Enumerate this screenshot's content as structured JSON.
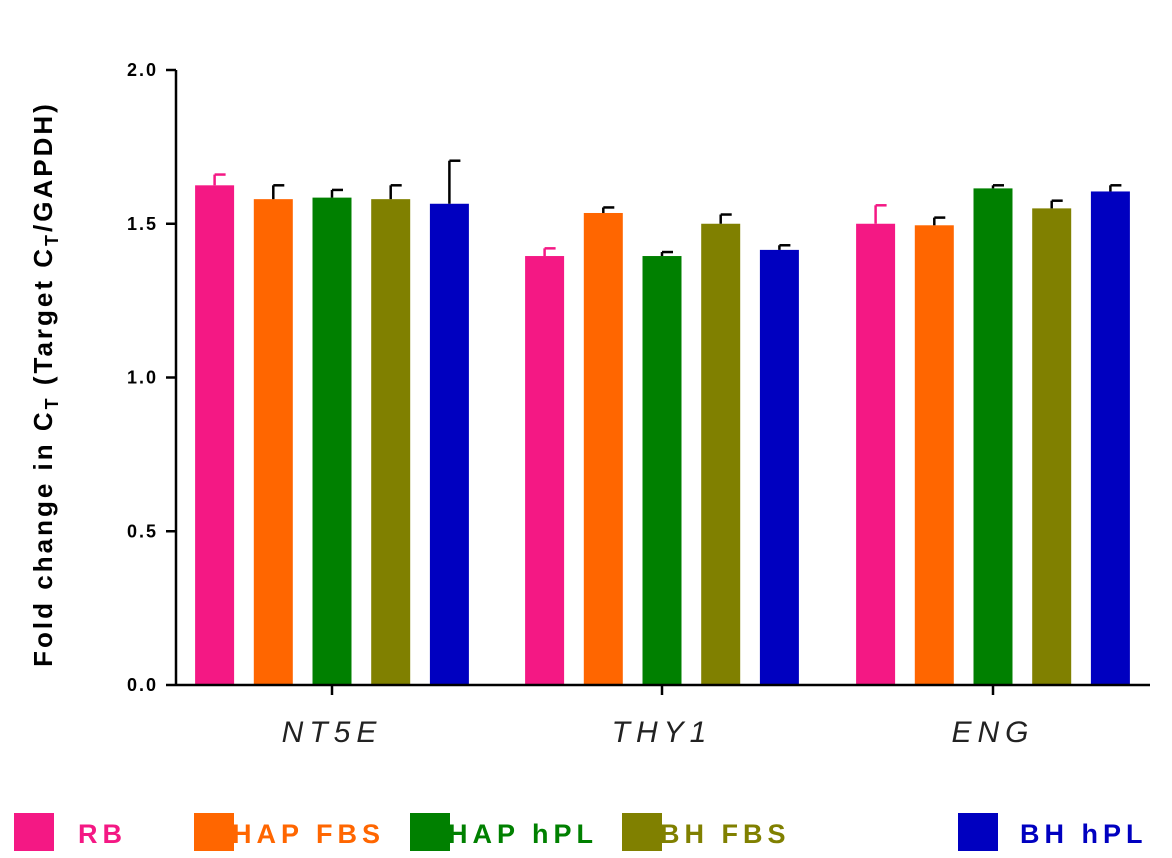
{
  "chart_data": {
    "type": "bar",
    "categories": [
      "NT5E",
      "THY1",
      "ENG"
    ],
    "ylabel": {
      "prefix": "Fold change in C",
      "sub1": "T",
      "middle": " (Target C",
      "sub2": "T",
      "suffix": "/GAPDH)"
    },
    "ylim": [
      0,
      2.0
    ],
    "yticks": [
      "0.0",
      "0.5",
      "1.0",
      "1.5",
      "2.0"
    ],
    "ytick_values": [
      0,
      0.5,
      1.0,
      1.5,
      2.0
    ],
    "legend_position": "bottom",
    "grid": false,
    "series": [
      {
        "name": "RB",
        "color": "#f41884",
        "values": [
          1.625,
          1.395,
          1.5
        ],
        "errors": [
          0.035,
          0.025,
          0.06
        ]
      },
      {
        "name": "HAP FBS",
        "color": "#ff6600",
        "values": [
          1.58,
          1.535,
          1.495
        ],
        "errors": [
          0.045,
          0.018,
          0.025
        ]
      },
      {
        "name": "HAP hPL",
        "color": "#008000",
        "values": [
          1.585,
          1.395,
          1.615
        ],
        "errors": [
          0.025,
          0.013,
          0.01
        ]
      },
      {
        "name": "BH FBS",
        "color": "#808000",
        "values": [
          1.58,
          1.5,
          1.55
        ],
        "errors": [
          0.045,
          0.03,
          0.025
        ]
      },
      {
        "name": "BH hPL",
        "color": "#0000c0",
        "values": [
          1.565,
          1.415,
          1.605
        ],
        "errors": [
          0.14,
          0.015,
          0.02
        ]
      }
    ]
  }
}
